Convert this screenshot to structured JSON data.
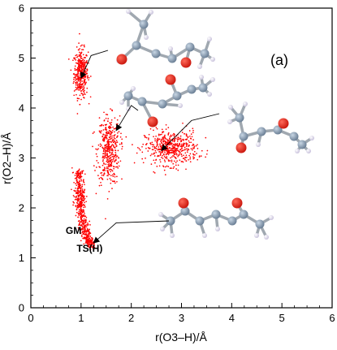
{
  "chart_data": {
    "type": "scatter",
    "title": "",
    "panel_label": "(a)",
    "xlabel": "r(O3–H)/Å",
    "ylabel": "r(O2–H)/Å",
    "xlim": [
      0,
      6
    ],
    "ylim": [
      0,
      6
    ],
    "xticks": [
      "0",
      "1",
      "2",
      "3",
      "4",
      "5",
      "6"
    ],
    "yticks": [
      "0",
      "1",
      "2",
      "3",
      "4",
      "5",
      "6"
    ],
    "grid": false,
    "marker_color": "#ff0000",
    "clusters": [
      {
        "name": "upper-cluster",
        "center": [
          1.0,
          4.7
        ],
        "spread": [
          0.07,
          0.24
        ],
        "count": 380
      },
      {
        "name": "middle-cluster",
        "center": [
          1.55,
          3.15
        ],
        "spread": [
          0.11,
          0.34
        ],
        "count": 420
      },
      {
        "name": "right-cluster",
        "center": [
          2.8,
          3.2
        ],
        "spread": [
          0.26,
          0.17
        ],
        "count": 520
      },
      {
        "name": "lower-arc",
        "points": [
          [
            0.95,
            2.75
          ],
          [
            0.97,
            2.35
          ],
          [
            1.0,
            2.0
          ],
          [
            1.05,
            1.65
          ],
          [
            1.12,
            1.4
          ],
          [
            1.2,
            1.25
          ]
        ],
        "spread": 0.05,
        "count": 560
      }
    ],
    "annotations": [
      {
        "label": "GM",
        "x": 0.85,
        "y": 1.48
      },
      {
        "label": "TS(H)",
        "x": 1.17,
        "y": 1.12
      }
    ],
    "arrow_targets": [
      {
        "to": [
          1.0,
          4.6
        ],
        "from": [
          1.2,
          5.05
        ]
      },
      {
        "to": [
          1.7,
          3.55
        ],
        "from": [
          2.0,
          4.05
        ]
      },
      {
        "to": [
          2.6,
          3.15
        ],
        "from": [
          3.2,
          3.75
        ]
      },
      {
        "to": [
          1.25,
          1.3
        ],
        "from": [
          1.7,
          1.7
        ]
      }
    ]
  },
  "colors": {
    "oxygen": "#cc1a10",
    "carbon": "#6d8197",
    "hydrogen": "#f2eef8",
    "bond": "#a0a8b0"
  }
}
